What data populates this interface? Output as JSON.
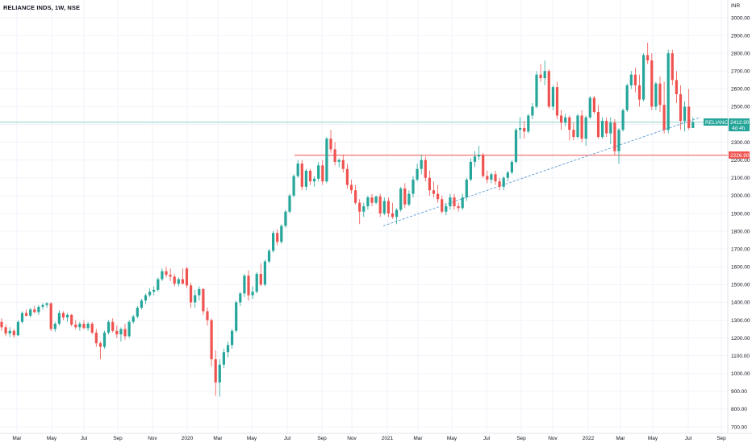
{
  "header": {
    "title": "RELIANCE INDS, 1W, NSE"
  },
  "currency": "INR",
  "colors": {
    "up": "#26a69a",
    "down": "#ef5350",
    "current_line": "#26a69a",
    "support_line": "#ef5350",
    "trendline": "#5b9bd5",
    "grid": "#f0f3fa"
  },
  "tags": {
    "current": {
      "symbol": "RELIANCE",
      "price": "2412.90",
      "countdown": "4d 4h",
      "value": 2412.9
    },
    "support": {
      "price": "2226.90",
      "value": 2226.9
    }
  },
  "chart_data": {
    "type": "candlestick",
    "title": "RELIANCE INDS, 1W, NSE",
    "ylim": [
      700,
      3000
    ],
    "yticks": [
      "3000.00",
      "2900.00",
      "2800.00",
      "2700.00",
      "2600.00",
      "2500.00",
      "2400.00",
      "2300.00",
      "2200.00",
      "2100.00",
      "2000.00",
      "1900.00",
      "1800.00",
      "1700.00",
      "1600.00",
      "1500.00",
      "1400.00",
      "1300.00",
      "1200.00",
      "1100.00",
      "1000.00",
      "900.00",
      "800.00",
      "700.00"
    ],
    "xlabels": [
      "Mar",
      "May",
      "Jul",
      "Sep",
      "Nov",
      "2020",
      "Mar",
      "May",
      "Jul",
      "Sep",
      "Nov",
      "2021",
      "Mar",
      "May",
      "Jul",
      "Sep",
      "Nov",
      "2022",
      "Mar",
      "May",
      "Jul",
      "Sep"
    ],
    "candles": [
      {
        "o": 1290,
        "h": 1310,
        "l": 1240,
        "c": 1260
      },
      {
        "o": 1260,
        "h": 1275,
        "l": 1210,
        "c": 1225
      },
      {
        "o": 1225,
        "h": 1260,
        "l": 1205,
        "c": 1240
      },
      {
        "o": 1240,
        "h": 1250,
        "l": 1200,
        "c": 1215
      },
      {
        "o": 1215,
        "h": 1300,
        "l": 1210,
        "c": 1290
      },
      {
        "o": 1290,
        "h": 1350,
        "l": 1280,
        "c": 1340
      },
      {
        "o": 1340,
        "h": 1360,
        "l": 1320,
        "c": 1325
      },
      {
        "o": 1325,
        "h": 1370,
        "l": 1315,
        "c": 1360
      },
      {
        "o": 1360,
        "h": 1380,
        "l": 1340,
        "c": 1345
      },
      {
        "o": 1345,
        "h": 1385,
        "l": 1330,
        "c": 1375
      },
      {
        "o": 1375,
        "h": 1395,
        "l": 1360,
        "c": 1385
      },
      {
        "o": 1385,
        "h": 1400,
        "l": 1370,
        "c": 1395
      },
      {
        "o": 1395,
        "h": 1400,
        "l": 1240,
        "c": 1250
      },
      {
        "o": 1250,
        "h": 1290,
        "l": 1235,
        "c": 1280
      },
      {
        "o": 1280,
        "h": 1355,
        "l": 1270,
        "c": 1340
      },
      {
        "o": 1340,
        "h": 1350,
        "l": 1300,
        "c": 1315
      },
      {
        "o": 1315,
        "h": 1340,
        "l": 1290,
        "c": 1330
      },
      {
        "o": 1330,
        "h": 1335,
        "l": 1265,
        "c": 1275
      },
      {
        "o": 1275,
        "h": 1300,
        "l": 1250,
        "c": 1260
      },
      {
        "o": 1260,
        "h": 1290,
        "l": 1240,
        "c": 1280
      },
      {
        "o": 1280,
        "h": 1300,
        "l": 1250,
        "c": 1255
      },
      {
        "o": 1255,
        "h": 1290,
        "l": 1240,
        "c": 1280
      },
      {
        "o": 1280,
        "h": 1290,
        "l": 1220,
        "c": 1230
      },
      {
        "o": 1230,
        "h": 1250,
        "l": 1150,
        "c": 1170
      },
      {
        "o": 1170,
        "h": 1180,
        "l": 1080,
        "c": 1150
      },
      {
        "o": 1150,
        "h": 1240,
        "l": 1140,
        "c": 1230
      },
      {
        "o": 1230,
        "h": 1300,
        "l": 1220,
        "c": 1290
      },
      {
        "o": 1290,
        "h": 1310,
        "l": 1230,
        "c": 1240
      },
      {
        "o": 1240,
        "h": 1270,
        "l": 1200,
        "c": 1220
      },
      {
        "o": 1220,
        "h": 1260,
        "l": 1180,
        "c": 1250
      },
      {
        "o": 1250,
        "h": 1280,
        "l": 1190,
        "c": 1210
      },
      {
        "o": 1210,
        "h": 1300,
        "l": 1200,
        "c": 1290
      },
      {
        "o": 1290,
        "h": 1330,
        "l": 1280,
        "c": 1320
      },
      {
        "o": 1320,
        "h": 1380,
        "l": 1310,
        "c": 1370
      },
      {
        "o": 1370,
        "h": 1420,
        "l": 1360,
        "c": 1410
      },
      {
        "o": 1410,
        "h": 1450,
        "l": 1390,
        "c": 1440
      },
      {
        "o": 1440,
        "h": 1480,
        "l": 1430,
        "c": 1460
      },
      {
        "o": 1460,
        "h": 1490,
        "l": 1440,
        "c": 1470
      },
      {
        "o": 1470,
        "h": 1540,
        "l": 1460,
        "c": 1530
      },
      {
        "o": 1530,
        "h": 1590,
        "l": 1520,
        "c": 1575
      },
      {
        "o": 1575,
        "h": 1600,
        "l": 1540,
        "c": 1555
      },
      {
        "o": 1555,
        "h": 1590,
        "l": 1520,
        "c": 1545
      },
      {
        "o": 1545,
        "h": 1560,
        "l": 1490,
        "c": 1505
      },
      {
        "o": 1505,
        "h": 1540,
        "l": 1490,
        "c": 1530
      },
      {
        "o": 1530,
        "h": 1590,
        "l": 1500,
        "c": 1505
      },
      {
        "o": 1590,
        "h": 1600,
        "l": 1480,
        "c": 1495
      },
      {
        "o": 1495,
        "h": 1510,
        "l": 1370,
        "c": 1400
      },
      {
        "o": 1400,
        "h": 1470,
        "l": 1370,
        "c": 1440
      },
      {
        "o": 1440,
        "h": 1490,
        "l": 1410,
        "c": 1475
      },
      {
        "o": 1475,
        "h": 1480,
        "l": 1330,
        "c": 1350
      },
      {
        "o": 1350,
        "h": 1370,
        "l": 1270,
        "c": 1300
      },
      {
        "o": 1300,
        "h": 1310,
        "l": 1040,
        "c": 1080
      },
      {
        "o": 1080,
        "h": 1130,
        "l": 875,
        "c": 950
      },
      {
        "o": 950,
        "h": 1080,
        "l": 870,
        "c": 1050
      },
      {
        "o": 1050,
        "h": 1140,
        "l": 1030,
        "c": 1120
      },
      {
        "o": 1120,
        "h": 1180,
        "l": 1090,
        "c": 1160
      },
      {
        "o": 1160,
        "h": 1250,
        "l": 1140,
        "c": 1240
      },
      {
        "o": 1240,
        "h": 1410,
        "l": 1230,
        "c": 1400
      },
      {
        "o": 1400,
        "h": 1460,
        "l": 1380,
        "c": 1450
      },
      {
        "o": 1450,
        "h": 1560,
        "l": 1430,
        "c": 1550
      },
      {
        "o": 1550,
        "h": 1580,
        "l": 1410,
        "c": 1440
      },
      {
        "o": 1440,
        "h": 1490,
        "l": 1420,
        "c": 1460
      },
      {
        "o": 1460,
        "h": 1570,
        "l": 1450,
        "c": 1560
      },
      {
        "o": 1560,
        "h": 1620,
        "l": 1490,
        "c": 1500
      },
      {
        "o": 1500,
        "h": 1640,
        "l": 1490,
        "c": 1630
      },
      {
        "o": 1630,
        "h": 1700,
        "l": 1620,
        "c": 1690
      },
      {
        "o": 1690,
        "h": 1800,
        "l": 1680,
        "c": 1790
      },
      {
        "o": 1790,
        "h": 1810,
        "l": 1720,
        "c": 1740
      },
      {
        "o": 1740,
        "h": 1840,
        "l": 1730,
        "c": 1830
      },
      {
        "o": 1830,
        "h": 1920,
        "l": 1820,
        "c": 1910
      },
      {
        "o": 1910,
        "h": 2010,
        "l": 1900,
        "c": 2000
      },
      {
        "o": 2000,
        "h": 2120,
        "l": 1990,
        "c": 2110
      },
      {
        "o": 2110,
        "h": 2200,
        "l": 2100,
        "c": 2180
      },
      {
        "o": 2180,
        "h": 2200,
        "l": 2030,
        "c": 2050
      },
      {
        "o": 2050,
        "h": 2150,
        "l": 2030,
        "c": 2140
      },
      {
        "o": 2140,
        "h": 2150,
        "l": 2060,
        "c": 2080
      },
      {
        "o": 2080,
        "h": 2110,
        "l": 2050,
        "c": 2095
      },
      {
        "o": 2095,
        "h": 2190,
        "l": 2080,
        "c": 2170
      },
      {
        "o": 2170,
        "h": 2200,
        "l": 2060,
        "c": 2080
      },
      {
        "o": 2080,
        "h": 2330,
        "l": 2070,
        "c": 2320
      },
      {
        "o": 2320,
        "h": 2370,
        "l": 2240,
        "c": 2260
      },
      {
        "o": 2260,
        "h": 2300,
        "l": 2170,
        "c": 2190
      },
      {
        "o": 2190,
        "h": 2210,
        "l": 2160,
        "c": 2200
      },
      {
        "o": 2200,
        "h": 2230,
        "l": 2130,
        "c": 2150
      },
      {
        "o": 2150,
        "h": 2180,
        "l": 2040,
        "c": 2060
      },
      {
        "o": 2060,
        "h": 2090,
        "l": 2010,
        "c": 2030
      },
      {
        "o": 2030,
        "h": 2060,
        "l": 1950,
        "c": 1960
      },
      {
        "o": 1960,
        "h": 1980,
        "l": 1840,
        "c": 1910
      },
      {
        "o": 1910,
        "h": 1960,
        "l": 1880,
        "c": 1940
      },
      {
        "o": 1940,
        "h": 2000,
        "l": 1920,
        "c": 1990
      },
      {
        "o": 1990,
        "h": 2010,
        "l": 1940,
        "c": 1960
      },
      {
        "o": 1960,
        "h": 2000,
        "l": 1950,
        "c": 1995
      },
      {
        "o": 1995,
        "h": 2010,
        "l": 1880,
        "c": 1900
      },
      {
        "o": 1900,
        "h": 1990,
        "l": 1890,
        "c": 1970
      },
      {
        "o": 1970,
        "h": 1990,
        "l": 1880,
        "c": 1900
      },
      {
        "o": 1900,
        "h": 1960,
        "l": 1870,
        "c": 1880
      },
      {
        "o": 1880,
        "h": 1930,
        "l": 1840,
        "c": 1920
      },
      {
        "o": 1920,
        "h": 2050,
        "l": 1910,
        "c": 2040
      },
      {
        "o": 2040,
        "h": 2070,
        "l": 1930,
        "c": 1950
      },
      {
        "o": 1950,
        "h": 2030,
        "l": 1940,
        "c": 2010
      },
      {
        "o": 2010,
        "h": 2110,
        "l": 1990,
        "c": 2090
      },
      {
        "o": 2090,
        "h": 2180,
        "l": 2080,
        "c": 2150
      },
      {
        "o": 2150,
        "h": 2230,
        "l": 2120,
        "c": 2200
      },
      {
        "o": 2200,
        "h": 2220,
        "l": 2080,
        "c": 2100
      },
      {
        "o": 2100,
        "h": 2140,
        "l": 2000,
        "c": 2030
      },
      {
        "o": 2030,
        "h": 2080,
        "l": 1990,
        "c": 2010
      },
      {
        "o": 2010,
        "h": 2060,
        "l": 1960,
        "c": 1980
      },
      {
        "o": 1980,
        "h": 2000,
        "l": 1900,
        "c": 1910
      },
      {
        "o": 1910,
        "h": 1960,
        "l": 1890,
        "c": 1940
      },
      {
        "o": 1940,
        "h": 2010,
        "l": 1920,
        "c": 1990
      },
      {
        "o": 1990,
        "h": 2010,
        "l": 1920,
        "c": 1940
      },
      {
        "o": 1940,
        "h": 1960,
        "l": 1910,
        "c": 1930
      },
      {
        "o": 1930,
        "h": 2010,
        "l": 1920,
        "c": 1990
      },
      {
        "o": 1990,
        "h": 2100,
        "l": 1970,
        "c": 2090
      },
      {
        "o": 2090,
        "h": 2210,
        "l": 2080,
        "c": 2190
      },
      {
        "o": 2190,
        "h": 2250,
        "l": 2160,
        "c": 2220
      },
      {
        "o": 2220,
        "h": 2280,
        "l": 2200,
        "c": 2230
      },
      {
        "o": 2230,
        "h": 2240,
        "l": 2100,
        "c": 2110
      },
      {
        "o": 2110,
        "h": 2140,
        "l": 2070,
        "c": 2090
      },
      {
        "o": 2090,
        "h": 2130,
        "l": 2070,
        "c": 2120
      },
      {
        "o": 2120,
        "h": 2140,
        "l": 2060,
        "c": 2080
      },
      {
        "o": 2080,
        "h": 2100,
        "l": 2030,
        "c": 2050
      },
      {
        "o": 2050,
        "h": 2110,
        "l": 2030,
        "c": 2100
      },
      {
        "o": 2100,
        "h": 2140,
        "l": 2080,
        "c": 2130
      },
      {
        "o": 2130,
        "h": 2200,
        "l": 2120,
        "c": 2190
      },
      {
        "o": 2190,
        "h": 2380,
        "l": 2180,
        "c": 2370
      },
      {
        "o": 2370,
        "h": 2440,
        "l": 2320,
        "c": 2380
      },
      {
        "o": 2380,
        "h": 2420,
        "l": 2320,
        "c": 2360
      },
      {
        "o": 2360,
        "h": 2460,
        "l": 2350,
        "c": 2450
      },
      {
        "o": 2450,
        "h": 2520,
        "l": 2430,
        "c": 2500
      },
      {
        "o": 2500,
        "h": 2700,
        "l": 2490,
        "c": 2680
      },
      {
        "o": 2680,
        "h": 2740,
        "l": 2640,
        "c": 2660
      },
      {
        "o": 2660,
        "h": 2760,
        "l": 2620,
        "c": 2700
      },
      {
        "o": 2700,
        "h": 2710,
        "l": 2490,
        "c": 2500
      },
      {
        "o": 2500,
        "h": 2620,
        "l": 2480,
        "c": 2610
      },
      {
        "o": 2610,
        "h": 2640,
        "l": 2430,
        "c": 2450
      },
      {
        "o": 2450,
        "h": 2480,
        "l": 2370,
        "c": 2410
      },
      {
        "o": 2410,
        "h": 2460,
        "l": 2390,
        "c": 2440
      },
      {
        "o": 2440,
        "h": 2450,
        "l": 2310,
        "c": 2370
      },
      {
        "o": 2370,
        "h": 2410,
        "l": 2310,
        "c": 2330
      },
      {
        "o": 2330,
        "h": 2460,
        "l": 2320,
        "c": 2450
      },
      {
        "o": 2450,
        "h": 2480,
        "l": 2300,
        "c": 2320
      },
      {
        "o": 2320,
        "h": 2450,
        "l": 2280,
        "c": 2440
      },
      {
        "o": 2440,
        "h": 2560,
        "l": 2430,
        "c": 2550
      },
      {
        "o": 2550,
        "h": 2560,
        "l": 2460,
        "c": 2470
      },
      {
        "o": 2470,
        "h": 2510,
        "l": 2320,
        "c": 2330
      },
      {
        "o": 2330,
        "h": 2440,
        "l": 2320,
        "c": 2420
      },
      {
        "o": 2420,
        "h": 2440,
        "l": 2330,
        "c": 2350
      },
      {
        "o": 2350,
        "h": 2440,
        "l": 2290,
        "c": 2410
      },
      {
        "o": 2410,
        "h": 2430,
        "l": 2230,
        "c": 2250
      },
      {
        "o": 2250,
        "h": 2380,
        "l": 2180,
        "c": 2370
      },
      {
        "o": 2370,
        "h": 2490,
        "l": 2360,
        "c": 2480
      },
      {
        "o": 2480,
        "h": 2630,
        "l": 2470,
        "c": 2620
      },
      {
        "o": 2620,
        "h": 2700,
        "l": 2600,
        "c": 2680
      },
      {
        "o": 2680,
        "h": 2720,
        "l": 2580,
        "c": 2620
      },
      {
        "o": 2620,
        "h": 2680,
        "l": 2500,
        "c": 2540
      },
      {
        "o": 2540,
        "h": 2800,
        "l": 2530,
        "c": 2790
      },
      {
        "o": 2790,
        "h": 2860,
        "l": 2740,
        "c": 2760
      },
      {
        "o": 2760,
        "h": 2800,
        "l": 2480,
        "c": 2500
      },
      {
        "o": 2500,
        "h": 2640,
        "l": 2480,
        "c": 2630
      },
      {
        "o": 2630,
        "h": 2670,
        "l": 2470,
        "c": 2510
      },
      {
        "o": 2510,
        "h": 2640,
        "l": 2350,
        "c": 2370
      },
      {
        "o": 2370,
        "h": 2820,
        "l": 2350,
        "c": 2800
      },
      {
        "o": 2800,
        "h": 2820,
        "l": 2620,
        "c": 2650
      },
      {
        "o": 2650,
        "h": 2700,
        "l": 2520,
        "c": 2570
      },
      {
        "o": 2570,
        "h": 2620,
        "l": 2370,
        "c": 2420
      },
      {
        "o": 2420,
        "h": 2530,
        "l": 2360,
        "c": 2500
      },
      {
        "o": 2500,
        "h": 2600,
        "l": 2370,
        "c": 2380
      },
      {
        "o": 2380,
        "h": 2440,
        "l": 2380,
        "c": 2412.9
      }
    ]
  }
}
